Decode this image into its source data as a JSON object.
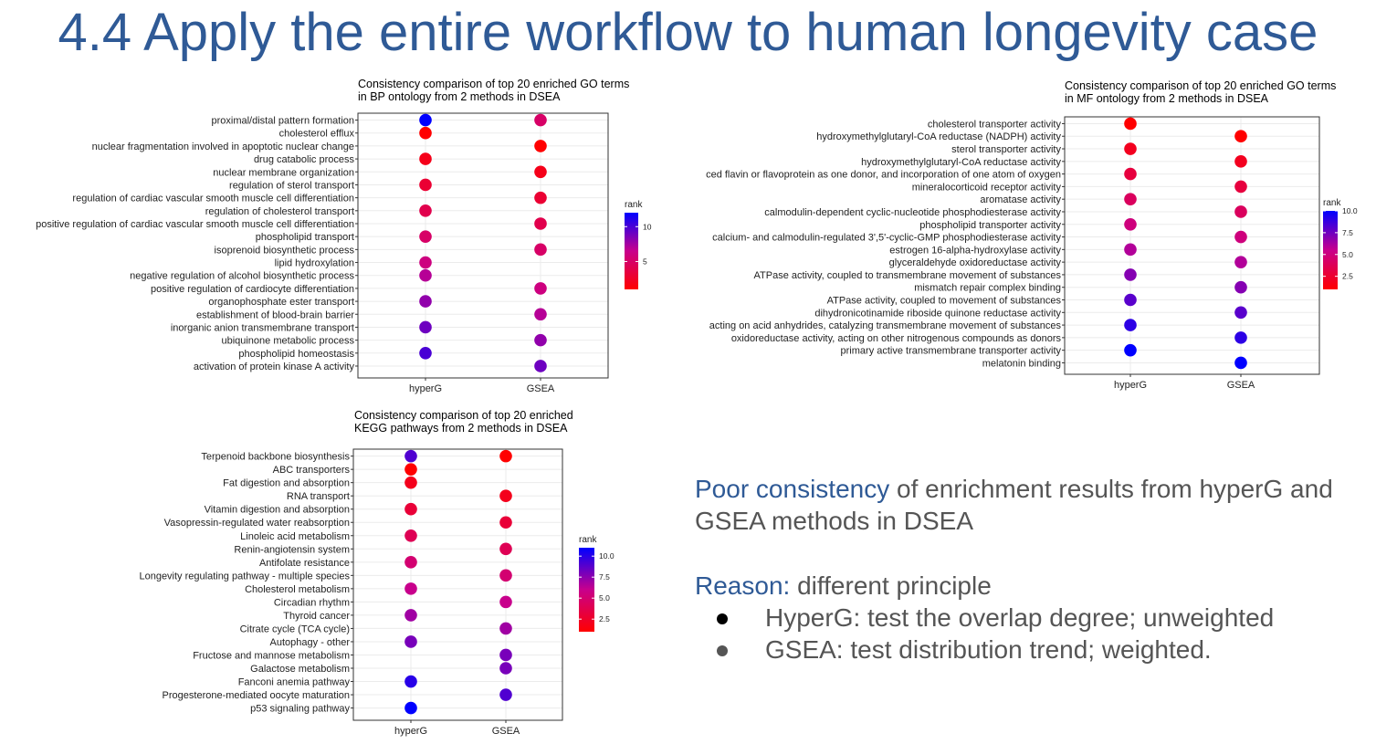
{
  "slide": {
    "title": "4.4 Apply the entire workflow to human longevity case"
  },
  "notes": {
    "line1_highlight": "Poor consistency",
    "line1_rest": " of enrichment results from hyperG and GSEA methods in DSEA",
    "reason_label": "Reason:",
    "reason_text": "  different principle",
    "bullets": [
      "HyperG: test the overlap degree; unweighted",
      "GSEA: test distribution trend; weighted."
    ]
  },
  "colors": {
    "title": "#2f5a96",
    "rank_low": "#ff0000",
    "rank_high": "#0000ff"
  },
  "chart_data": [
    {
      "type": "dot",
      "title": "Consistency comparison of top 20 enriched GO terms\n in BP ontology from 2 methods in DSEA",
      "x_categories": [
        "hyperG",
        "GSEA"
      ],
      "legend_title": "rank",
      "legend_ticks": [
        "10",
        "5"
      ],
      "color_range": [
        1,
        12
      ],
      "grid": true,
      "terms": [
        "proximal/distal pattern formation",
        "cholesterol efflux",
        "nuclear fragmentation involved in apoptotic nuclear change",
        "drug catabolic process",
        "nuclear membrane organization",
        "regulation of sterol transport",
        "regulation of cardiac vascular smooth muscle cell differentiation",
        "regulation of cholesterol transport",
        "positive regulation of cardiac vascular smooth muscle cell differentiation",
        "phospholipid transport",
        "isoprenoid biosynthetic process",
        "lipid hydroxylation",
        "negative regulation of alcohol biosynthetic process",
        "positive regulation of cardiocyte differentiation",
        "organophosphate ester transport",
        "establishment of blood-brain barrier",
        "inorganic anion transmembrane transport",
        "ubiquinone metabolic process",
        "phospholipid homeostasis",
        "activation of protein kinase A activity"
      ],
      "hyperG": [
        12,
        1,
        null,
        2,
        null,
        3,
        null,
        4,
        null,
        5,
        null,
        6,
        7,
        null,
        8,
        null,
        9,
        null,
        10,
        null
      ],
      "GSEA": [
        5,
        null,
        1,
        null,
        2,
        null,
        3,
        null,
        4,
        null,
        5,
        null,
        null,
        6,
        null,
        7,
        null,
        8,
        null,
        9
      ]
    },
    {
      "type": "dot",
      "title": "Consistency comparison of top 20 enriched GO terms\n in MF ontology from 2 methods in DSEA",
      "x_categories": [
        "hyperG",
        "GSEA"
      ],
      "legend_title": "rank",
      "legend_ticks": [
        "10.0",
        "7.5",
        "5.0",
        "2.5"
      ],
      "color_range": [
        1,
        10
      ],
      "grid": true,
      "terms": [
        "cholesterol transporter activity",
        "hydroxymethylglutaryl-CoA reductase (NADPH) activity",
        "sterol transporter activity",
        "hydroxymethylglutaryl-CoA reductase activity",
        "ced flavin or flavoprotein as one donor, and incorporation of one atom of oxygen",
        "mineralocorticoid receptor activity",
        "aromatase activity",
        "calmodulin-dependent cyclic-nucleotide phosphodiesterase activity",
        "phospholipid transporter activity",
        "calcium- and calmodulin-regulated 3',5'-cyclic-GMP phosphodiesterase activity",
        "estrogen 16-alpha-hydroxylase activity",
        "glyceraldehyde oxidoreductase activity",
        "ATPase activity, coupled to transmembrane movement of substances",
        "mismatch repair complex binding",
        "ATPase activity, coupled to movement of substances",
        "dihydronicotinamide riboside quinone reductase activity",
        "acting on acid anhydrides, catalyzing transmembrane movement of substances",
        "oxidoreductase activity, acting on other nitrogenous compounds as donors",
        "primary active transmembrane transporter activity",
        "melatonin binding"
      ],
      "hyperG": [
        1,
        null,
        2,
        null,
        3,
        null,
        4,
        null,
        5,
        null,
        6,
        null,
        7,
        null,
        8,
        null,
        9,
        null,
        10,
        null
      ],
      "GSEA": [
        null,
        1,
        null,
        2,
        null,
        3,
        null,
        4,
        null,
        5,
        null,
        6,
        null,
        7,
        null,
        8,
        null,
        9,
        null,
        10
      ]
    },
    {
      "type": "dot",
      "title": "Consistency comparison of top 20 enriched\nKEGG pathways from 2 methods in DSEA",
      "x_categories": [
        "hyperG",
        "GSEA"
      ],
      "legend_title": "rank",
      "legend_ticks": [
        "10.0",
        "7.5",
        "5.0",
        "2.5"
      ],
      "color_range": [
        1,
        11
      ],
      "grid": true,
      "terms": [
        "Terpenoid backbone biosynthesis",
        "ABC transporters",
        "Fat digestion and absorption",
        "RNA transport",
        "Vitamin digestion and absorption",
        "Vasopressin-regulated water reabsorption",
        "Linoleic acid metabolism",
        "Renin-angiotensin system",
        "Antifolate resistance",
        "Longevity regulating pathway - multiple species",
        "Cholesterol metabolism",
        "Circadian rhythm",
        "Thyroid cancer",
        "Citrate cycle (TCA cycle)",
        "Autophagy - other",
        "Fructose and mannose metabolism",
        "Galactose metabolism",
        "Fanconi anemia pathway",
        "Progesterone-mediated oocyte maturation",
        "p53 signaling pathway"
      ],
      "hyperG": [
        9,
        1,
        2,
        null,
        3,
        null,
        4,
        null,
        5,
        null,
        6,
        null,
        7,
        null,
        8,
        null,
        null,
        10,
        null,
        11
      ],
      "GSEA": [
        1,
        null,
        null,
        2,
        null,
        3,
        null,
        4,
        null,
        5,
        null,
        6,
        null,
        7,
        null,
        8,
        8,
        null,
        9,
        null
      ]
    }
  ]
}
